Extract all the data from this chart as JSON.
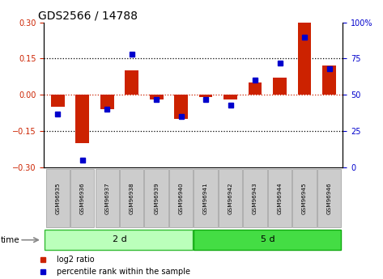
{
  "title": "GDS2566 / 14788",
  "samples": [
    "GSM96935",
    "GSM96936",
    "GSM96937",
    "GSM96938",
    "GSM96939",
    "GSM96940",
    "GSM96941",
    "GSM96942",
    "GSM96943",
    "GSM96944",
    "GSM96945",
    "GSM96946"
  ],
  "log2_ratio": [
    -0.05,
    -0.2,
    -0.06,
    0.1,
    -0.02,
    -0.1,
    -0.01,
    -0.02,
    0.05,
    0.07,
    0.3,
    0.12
  ],
  "percentile": [
    37,
    5,
    40,
    78,
    47,
    35,
    47,
    43,
    60,
    72,
    90,
    68
  ],
  "ylim": [
    -0.3,
    0.3
  ],
  "yticks_left": [
    -0.3,
    -0.15,
    0.0,
    0.15,
    0.3
  ],
  "yticks_right": [
    0,
    25,
    50,
    75,
    100
  ],
  "bar_color": "#cc2200",
  "dot_color": "#0000cc",
  "grid_lines": [
    -0.15,
    0.0,
    0.15
  ],
  "group1_label": "2 d",
  "group2_label": "5 d",
  "group1_count": 6,
  "group2_count": 6,
  "group1_color": "#bbffbb",
  "group2_color": "#44dd44",
  "time_label": "time",
  "legend1": "log2 ratio",
  "legend2": "percentile rank within the sample",
  "bar_width": 0.55,
  "tick_label_size": 7,
  "title_fontsize": 10,
  "label_box_color": "#cccccc",
  "label_box_edge": "#999999"
}
